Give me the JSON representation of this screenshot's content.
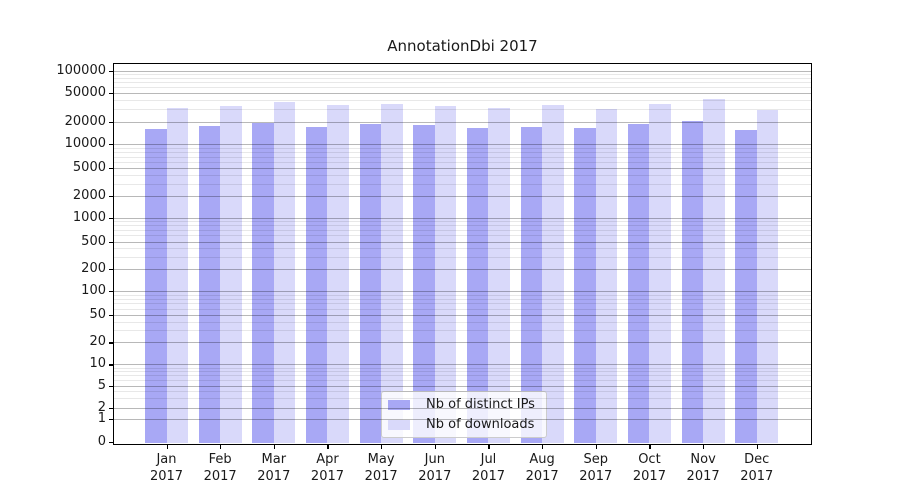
{
  "chart_data": {
    "type": "bar",
    "title": "AnnotationDbi 2017",
    "categories": [
      "Jan 2017",
      "Feb 2017",
      "Mar 2017",
      "Apr 2017",
      "May 2017",
      "Jun 2017",
      "Jul 2017",
      "Aug 2017",
      "Sep 2017",
      "Oct 2017",
      "Nov 2017",
      "Dec 2017"
    ],
    "series": [
      {
        "name": "Nb of distinct IPs",
        "color": "#a8a8f5",
        "values": [
          16400,
          17900,
          19500,
          17200,
          19100,
          18300,
          16500,
          17100,
          16500,
          18700,
          20800,
          15700
        ]
      },
      {
        "name": "Nb of downloads",
        "color": "#d9d9fa",
        "values": [
          31000,
          33400,
          37200,
          34500,
          36000,
          33800,
          31300,
          34500,
          30300,
          35000,
          42000,
          29000
        ]
      }
    ],
    "xlabel": "",
    "ylabel": "",
    "yscale": "log-with-zero",
    "ylim": [
      0,
      100000
    ],
    "yticks": [
      0,
      1,
      2,
      5,
      10,
      20,
      50,
      100,
      200,
      500,
      1000,
      2000,
      5000,
      10000,
      20000,
      50000,
      100000
    ],
    "grid": true,
    "legend_position": "lower center inside"
  },
  "colors": {
    "background": "#ffffff",
    "bar_distinct_ips": "#a8a8f5",
    "bar_downloads": "#d9d9fa",
    "grid_major": "rgba(0,0,0,0.28)",
    "grid_minor": "rgba(0,0,0,0.09)",
    "axis": "#000000",
    "text": "#1a1a1a",
    "legend_border": "#cccccc"
  }
}
